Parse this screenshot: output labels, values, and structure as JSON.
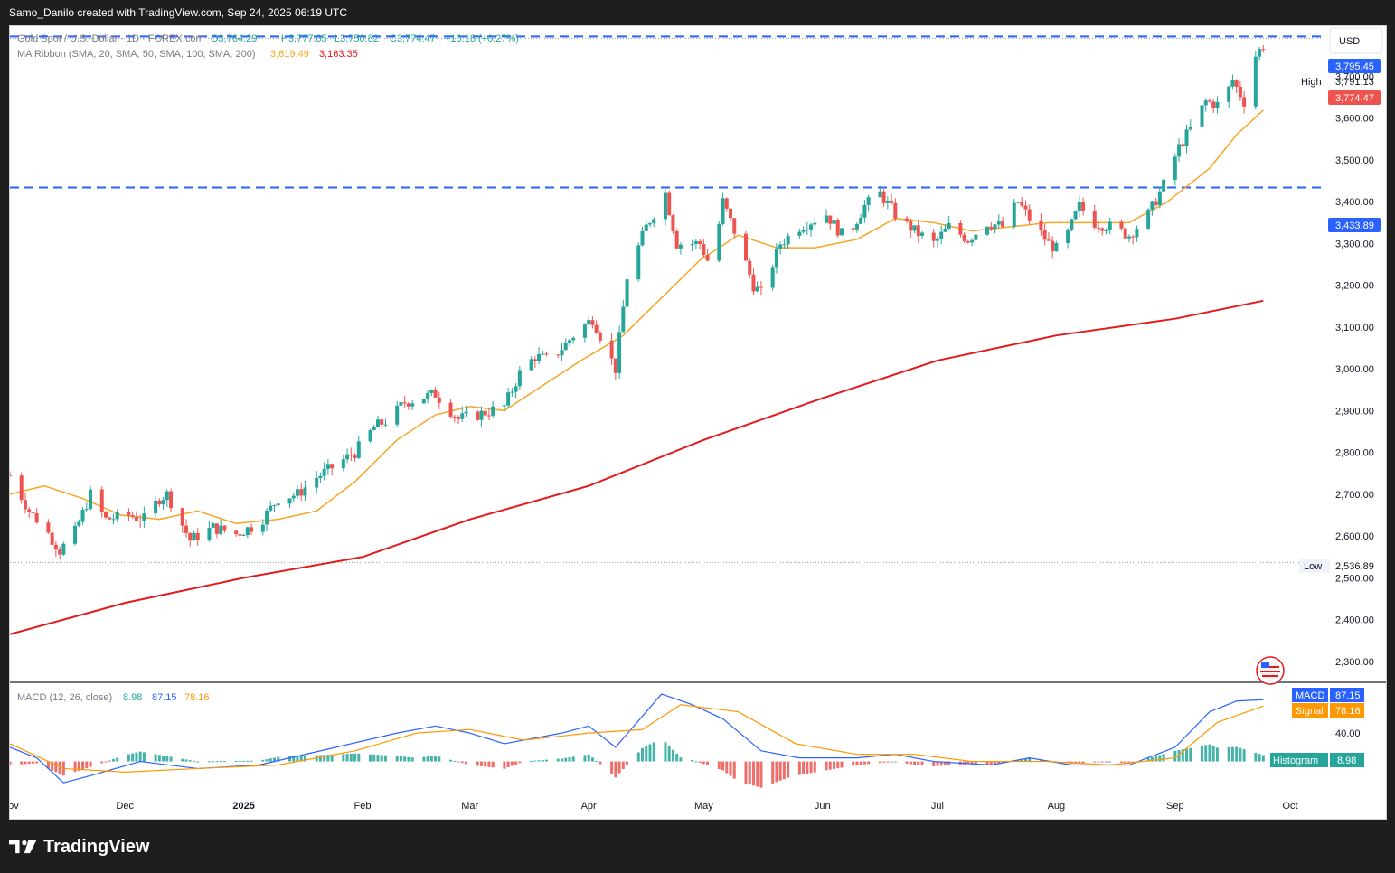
{
  "header": {
    "credit": "Samo_Danilo created with TradingView.com, Sep 24, 2025 06:19 UTC"
  },
  "legend": {
    "symbol": "Gold Spot / U.S. Dollar · 1D · FOREX.com",
    "open": "O3,764.29",
    "high": "H3,777.05",
    "low": "L3,750.82",
    "close": "C3,774.47",
    "change": "+10.18 (+0.27%)",
    "ma_label": "MA Ribbon (SMA, 20, SMA, 50, SMA, 100, SMA, 200)",
    "ma20": "3,619.49",
    "ma200": "3,163.35",
    "macd_label": "MACD (12, 26, close)",
    "macd_hist": "8.98",
    "macd_line": "87.15",
    "macd_signal": "78.16"
  },
  "currency_button": "USD",
  "footer": {
    "brand": "TradingView"
  },
  "price_badges": {
    "level_upper": "3,795.45",
    "high_label": "High",
    "high_value": "3,791.13",
    "last_price": "3,774.47",
    "level_lower": "3,433.89",
    "low_label": "Low",
    "low_value": "2,536.89",
    "macd_tag": "MACD",
    "macd_val": "87.15",
    "signal_tag": "Signal",
    "signal_val": "78.16",
    "hist_tag": "Histogram",
    "hist_val": "8.98"
  },
  "colors": {
    "up": "#26a69a",
    "down": "#ef5350",
    "level": "#2962ff",
    "ma20": "#f5a623",
    "ma200": "#e31a1c",
    "macd": "#2962ff",
    "signal": "#ff9800"
  },
  "chart_data": {
    "type": "candlestick",
    "y_axis": {
      "min": 2250,
      "max": 3820,
      "ticks": [
        "3,700.00",
        "3,600.00",
        "3,500.00",
        "3,400.00",
        "3,300.00",
        "3,200.00",
        "3,100.00",
        "3,000.00",
        "2,900.00",
        "2,800.00",
        "2,700.00",
        "2,600.00",
        "2,500.00",
        "2,400.00",
        "2,300.00"
      ],
      "tick_values": [
        3700,
        3600,
        3500,
        3400,
        3300,
        3200,
        3100,
        3000,
        2900,
        2800,
        2700,
        2600,
        2500,
        2400,
        2300
      ]
    },
    "x_axis": {
      "labels": [
        "Nov",
        "Dec",
        "2025",
        "Feb",
        "Mar",
        "Apr",
        "May",
        "Jun",
        "Jul",
        "Aug",
        "Sep",
        "Oct"
      ],
      "label_dates": [
        "2024-11-01",
        "2024-12-01",
        "2025-01-01",
        "2025-02-01",
        "2025-03-01",
        "2025-04-01",
        "2025-05-01",
        "2025-06-01",
        "2025-07-01",
        "2025-08-01",
        "2025-09-01",
        "2025-10-01"
      ],
      "start": "2024-11-01",
      "end": "2025-10-01"
    },
    "horizontal_levels": [
      3795.45,
      3433.89
    ],
    "high": 3791.13,
    "low": 2536.89,
    "last": 3774.47,
    "close_path": [
      [
        "2024-11-01",
        2745
      ],
      [
        "2024-11-06",
        2660
      ],
      [
        "2024-11-10",
        2620
      ],
      [
        "2024-11-14",
        2565
      ],
      [
        "2024-11-18",
        2610
      ],
      [
        "2024-11-22",
        2700
      ],
      [
        "2024-11-26",
        2640
      ],
      [
        "2024-12-02",
        2650
      ],
      [
        "2024-12-06",
        2640
      ],
      [
        "2024-12-10",
        2690
      ],
      [
        "2024-12-12",
        2700
      ],
      [
        "2024-12-18",
        2590
      ],
      [
        "2024-12-24",
        2620
      ],
      [
        "2024-12-30",
        2605
      ],
      [
        "2025-01-05",
        2630
      ],
      [
        "2025-01-10",
        2690
      ],
      [
        "2025-01-15",
        2700
      ],
      [
        "2025-01-20",
        2740
      ],
      [
        "2025-01-25",
        2770
      ],
      [
        "2025-01-30",
        2800
      ],
      [
        "2025-02-04",
        2860
      ],
      [
        "2025-02-08",
        2880
      ],
      [
        "2025-02-12",
        2920
      ],
      [
        "2025-02-20",
        2940
      ],
      [
        "2025-02-26",
        2880
      ],
      [
        "2025-03-03",
        2890
      ],
      [
        "2025-03-10",
        2910
      ],
      [
        "2025-03-14",
        2990
      ],
      [
        "2025-03-18",
        3030
      ],
      [
        "2025-03-22",
        3020
      ],
      [
        "2025-03-28",
        3080
      ],
      [
        "2025-04-02",
        3120
      ],
      [
        "2025-04-08",
        3000
      ],
      [
        "2025-04-11",
        3220
      ],
      [
        "2025-04-16",
        3340
      ],
      [
        "2025-04-21",
        3420
      ],
      [
        "2025-04-24",
        3300
      ],
      [
        "2025-04-30",
        3300
      ],
      [
        "2025-05-03",
        3240
      ],
      [
        "2025-05-06",
        3400
      ],
      [
        "2025-05-09",
        3330
      ],
      [
        "2025-05-14",
        3200
      ],
      [
        "2025-05-16",
        3180
      ],
      [
        "2025-05-21",
        3300
      ],
      [
        "2025-05-26",
        3340
      ],
      [
        "2025-06-02",
        3370
      ],
      [
        "2025-06-07",
        3310
      ],
      [
        "2025-06-12",
        3390
      ],
      [
        "2025-06-16",
        3420
      ],
      [
        "2025-06-20",
        3370
      ],
      [
        "2025-06-25",
        3330
      ],
      [
        "2025-06-30",
        3300
      ],
      [
        "2025-07-04",
        3340
      ],
      [
        "2025-07-09",
        3310
      ],
      [
        "2025-07-14",
        3350
      ],
      [
        "2025-07-18",
        3340
      ],
      [
        "2025-07-22",
        3400
      ],
      [
        "2025-07-25",
        3360
      ],
      [
        "2025-07-30",
        3300
      ],
      [
        "2025-08-02",
        3280
      ],
      [
        "2025-08-07",
        3390
      ],
      [
        "2025-08-11",
        3350
      ],
      [
        "2025-08-15",
        3340
      ],
      [
        "2025-08-20",
        3320
      ],
      [
        "2025-08-25",
        3370
      ],
      [
        "2025-08-29",
        3440
      ],
      [
        "2025-09-02",
        3530
      ],
      [
        "2025-09-06",
        3590
      ],
      [
        "2025-09-09",
        3640
      ],
      [
        "2025-09-13",
        3630
      ],
      [
        "2025-09-16",
        3690
      ],
      [
        "2025-09-19",
        3640
      ],
      [
        "2025-09-22",
        3750
      ],
      [
        "2025-09-24",
        3774
      ]
    ],
    "ma20_path": [
      [
        "2024-11-01",
        2700
      ],
      [
        "2024-11-10",
        2720
      ],
      [
        "2024-11-20",
        2690
      ],
      [
        "2024-11-30",
        2650
      ],
      [
        "2024-12-10",
        2640
      ],
      [
        "2024-12-20",
        2660
      ],
      [
        "2024-12-30",
        2630
      ],
      [
        "2025-01-10",
        2640
      ],
      [
        "2025-01-20",
        2660
      ],
      [
        "2025-01-30",
        2730
      ],
      [
        "2025-02-10",
        2830
      ],
      [
        "2025-02-20",
        2890
      ],
      [
        "2025-03-01",
        2910
      ],
      [
        "2025-03-10",
        2900
      ],
      [
        "2025-03-20",
        2960
      ],
      [
        "2025-03-30",
        3020
      ],
      [
        "2025-04-10",
        3080
      ],
      [
        "2025-04-20",
        3170
      ],
      [
        "2025-04-30",
        3260
      ],
      [
        "2025-05-10",
        3320
      ],
      [
        "2025-05-20",
        3290
      ],
      [
        "2025-05-30",
        3290
      ],
      [
        "2025-06-10",
        3310
      ],
      [
        "2025-06-20",
        3360
      ],
      [
        "2025-06-30",
        3350
      ],
      [
        "2025-07-10",
        3330
      ],
      [
        "2025-07-20",
        3340
      ],
      [
        "2025-07-30",
        3350
      ],
      [
        "2025-08-10",
        3350
      ],
      [
        "2025-08-20",
        3350
      ],
      [
        "2025-08-30",
        3400
      ],
      [
        "2025-09-10",
        3480
      ],
      [
        "2025-09-17",
        3560
      ],
      [
        "2025-09-24",
        3619
      ]
    ],
    "ma200_path": [
      [
        "2024-11-01",
        2365
      ],
      [
        "2024-12-01",
        2440
      ],
      [
        "2025-01-01",
        2500
      ],
      [
        "2025-02-01",
        2550
      ],
      [
        "2025-03-01",
        2640
      ],
      [
        "2025-04-01",
        2720
      ],
      [
        "2025-05-01",
        2830
      ],
      [
        "2025-06-01",
        2930
      ],
      [
        "2025-07-01",
        3020
      ],
      [
        "2025-08-01",
        3080
      ],
      [
        "2025-09-01",
        3120
      ],
      [
        "2025-09-24",
        3163
      ]
    ],
    "macd": {
      "ticks": [
        "40.00"
      ],
      "line": 87.15,
      "signal": 78.16,
      "histogram": 8.98,
      "macd_path": [
        [
          "2024-11-01",
          20
        ],
        [
          "2024-11-08",
          5
        ],
        [
          "2024-11-15",
          -30
        ],
        [
          "2024-11-22",
          -20
        ],
        [
          "2024-12-05",
          0
        ],
        [
          "2024-12-20",
          -10
        ],
        [
          "2025-01-05",
          -5
        ],
        [
          "2025-01-25",
          20
        ],
        [
          "2025-02-10",
          40
        ],
        [
          "2025-02-20",
          50
        ],
        [
          "2025-03-01",
          40
        ],
        [
          "2025-03-10",
          25
        ],
        [
          "2025-03-25",
          40
        ],
        [
          "2025-04-01",
          50
        ],
        [
          "2025-04-08",
          20
        ],
        [
          "2025-04-20",
          95
        ],
        [
          "2025-04-28",
          80
        ],
        [
          "2025-05-06",
          60
        ],
        [
          "2025-05-16",
          15
        ],
        [
          "2025-05-26",
          5
        ],
        [
          "2025-06-10",
          5
        ],
        [
          "2025-06-20",
          10
        ],
        [
          "2025-06-30",
          0
        ],
        [
          "2025-07-15",
          -5
        ],
        [
          "2025-07-25",
          5
        ],
        [
          "2025-08-05",
          -5
        ],
        [
          "2025-08-20",
          -5
        ],
        [
          "2025-09-01",
          20
        ],
        [
          "2025-09-10",
          70
        ],
        [
          "2025-09-17",
          85
        ],
        [
          "2025-09-24",
          87
        ]
      ],
      "signal_path": [
        [
          "2024-11-01",
          25
        ],
        [
          "2024-11-15",
          -10
        ],
        [
          "2024-12-01",
          -15
        ],
        [
          "2024-12-20",
          -10
        ],
        [
          "2025-01-10",
          -5
        ],
        [
          "2025-01-30",
          15
        ],
        [
          "2025-02-15",
          40
        ],
        [
          "2025-03-01",
          45
        ],
        [
          "2025-03-15",
          30
        ],
        [
          "2025-04-01",
          40
        ],
        [
          "2025-04-15",
          45
        ],
        [
          "2025-04-25",
          80
        ],
        [
          "2025-05-10",
          70
        ],
        [
          "2025-05-25",
          25
        ],
        [
          "2025-06-10",
          10
        ],
        [
          "2025-06-25",
          10
        ],
        [
          "2025-07-10",
          0
        ],
        [
          "2025-07-30",
          0
        ],
        [
          "2025-08-15",
          -5
        ],
        [
          "2025-09-01",
          5
        ],
        [
          "2025-09-12",
          55
        ],
        [
          "2025-09-24",
          78
        ]
      ]
    }
  }
}
